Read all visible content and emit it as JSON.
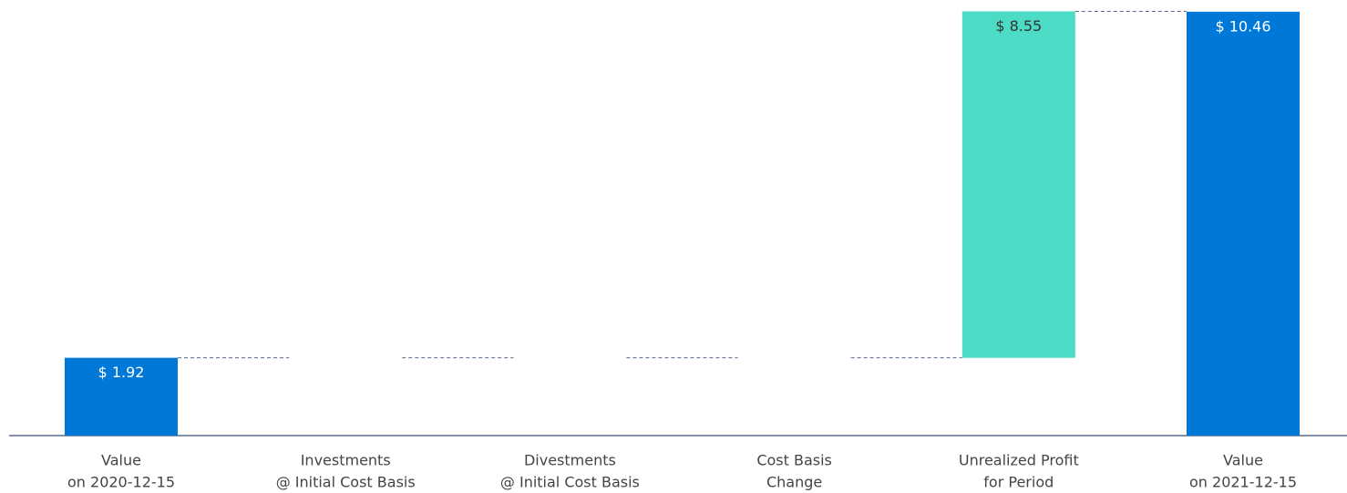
{
  "chart_data": {
    "type": "waterfall",
    "categories": [
      [
        "Value",
        "on 2020-12-15"
      ],
      [
        "Investments",
        "@ Initial Cost Basis"
      ],
      [
        "Divestments",
        "@ Initial Cost Basis"
      ],
      [
        "Cost Basis",
        "Change"
      ],
      [
        "Unrealized Profit",
        "for Period"
      ],
      [
        "Value",
        "on 2021-12-15"
      ]
    ],
    "values": [
      1.92,
      0,
      0,
      0,
      8.55,
      10.46
    ],
    "value_labels": [
      "$ 1.92",
      null,
      null,
      null,
      "$ 8.55",
      "$ 10.46"
    ],
    "measure": [
      "total",
      "relative",
      "relative",
      "relative",
      "relative",
      "total"
    ],
    "colors": {
      "total": "#0078d7",
      "relative": "#4cdbc4"
    },
    "ylim": [
      0,
      10.75
    ]
  }
}
